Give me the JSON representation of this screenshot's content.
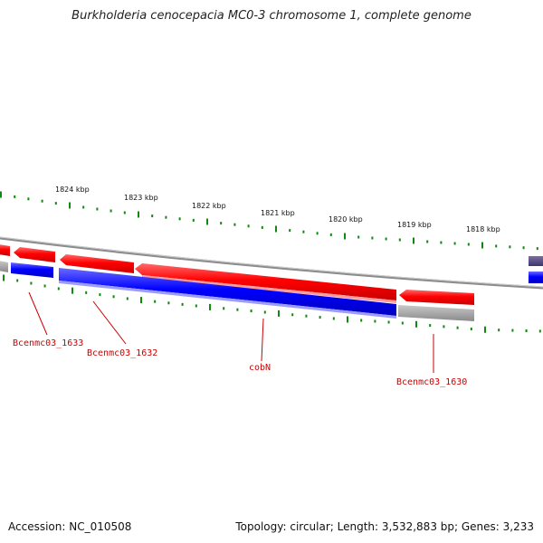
{
  "title": "Burkholderia cenocepacia MC0-3 chromosome 1, complete genome",
  "footer": {
    "accession": "Accession: NC_010508",
    "topology": "Topology: circular; Length: 3,532,883 bp; Genes: 3,233"
  },
  "scale_labels": [
    "1824 kbp",
    "1823 kbp",
    "1822 kbp",
    "1821 kbp",
    "1820 kbp",
    "1819 kbp",
    "1818 kbp"
  ],
  "gene_labels": [
    "Bcenmc03_1633",
    "Bcenmc03_1632",
    "cobN",
    "Bcenmc03_1630"
  ],
  "colors": {
    "forward_strand": "#ff0000",
    "reverse_strand": "#0000ff",
    "backbone": "#808080",
    "tick": "#118811",
    "label": "#cc0000",
    "rna": "#a0a0a0"
  }
}
